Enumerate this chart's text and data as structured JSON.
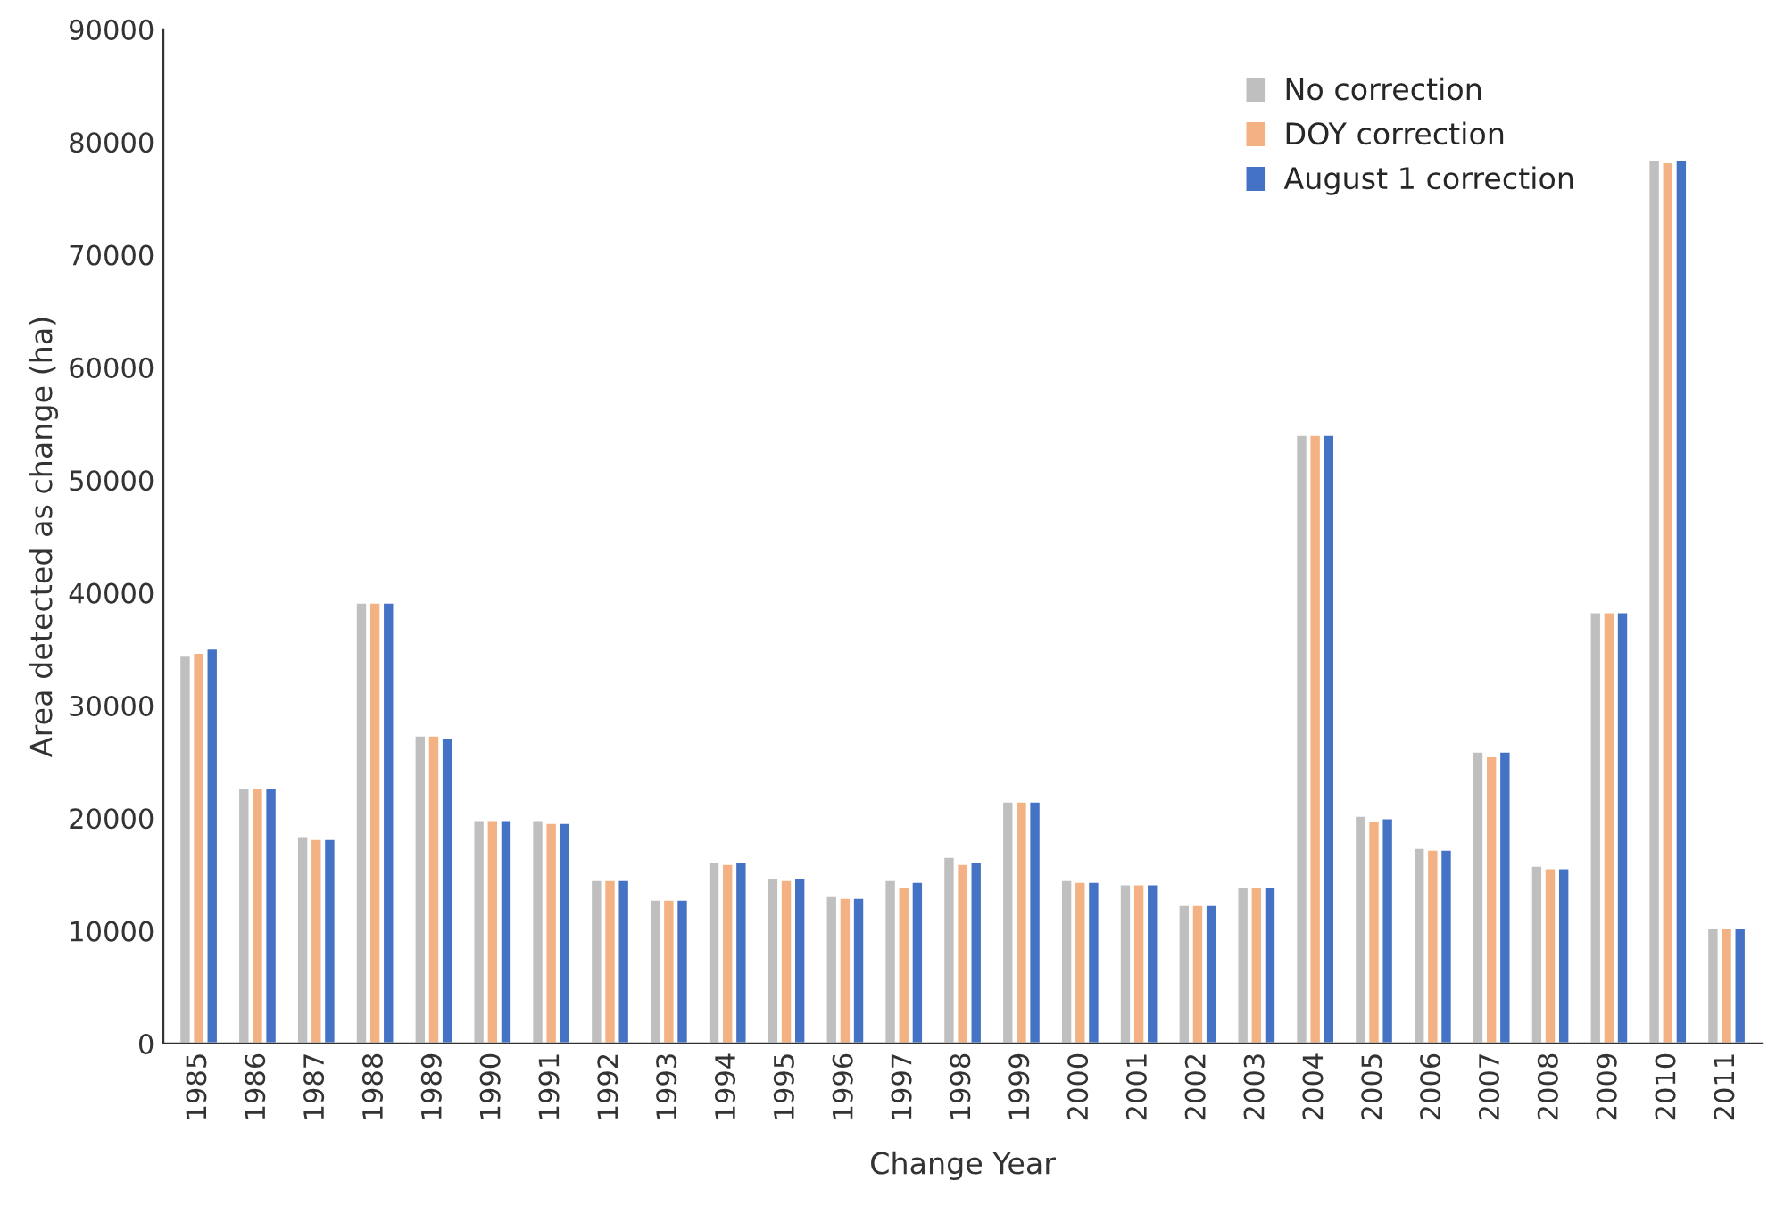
{
  "chart_data": {
    "type": "bar",
    "xlabel": "Change Year",
    "ylabel": "Area detected as change (ha)",
    "categories": [
      "1985",
      "1986",
      "1987",
      "1988",
      "1989",
      "1990",
      "1991",
      "1992",
      "1993",
      "1994",
      "1995",
      "1996",
      "1997",
      "1998",
      "1999",
      "2000",
      "2001",
      "2002",
      "2003",
      "2004",
      "2005",
      "2006",
      "2007",
      "2008",
      "2009",
      "2010",
      "2011"
    ],
    "series": [
      {
        "name": "No correction",
        "color": "#bfbfbf",
        "values": [
          34430,
          22660,
          18430,
          39140,
          27360,
          19860,
          19860,
          14530,
          12790,
          16160,
          14740,
          13100,
          14530,
          16590,
          21500,
          14530,
          14160,
          12310,
          13940,
          54030,
          20230,
          17380,
          25940,
          15800,
          38300,
          78430,
          10300
        ]
      },
      {
        "name": "DOY correction",
        "color": "#f4b183",
        "values": [
          34700,
          22660,
          18170,
          39140,
          27360,
          19860,
          19600,
          14530,
          12790,
          15950,
          14530,
          12950,
          13940,
          15950,
          21500,
          14370,
          14160,
          12310,
          13940,
          54030,
          19810,
          17220,
          25510,
          15580,
          38300,
          78220,
          10300
        ]
      },
      {
        "name": "August 1 correction",
        "color": "#4472c4",
        "values": [
          35070,
          22660,
          18170,
          39140,
          27150,
          19860,
          19600,
          14530,
          12790,
          16160,
          14740,
          12950,
          14370,
          16160,
          21500,
          14370,
          14160,
          12310,
          13940,
          54030,
          20020,
          17220,
          25940,
          15580,
          38300,
          78430,
          10300
        ]
      }
    ],
    "ylim": [
      0,
      90000
    ],
    "yticks": [
      0,
      10000,
      20000,
      30000,
      40000,
      50000,
      60000,
      70000,
      80000,
      90000
    ],
    "grid": false,
    "legend": "top right"
  }
}
